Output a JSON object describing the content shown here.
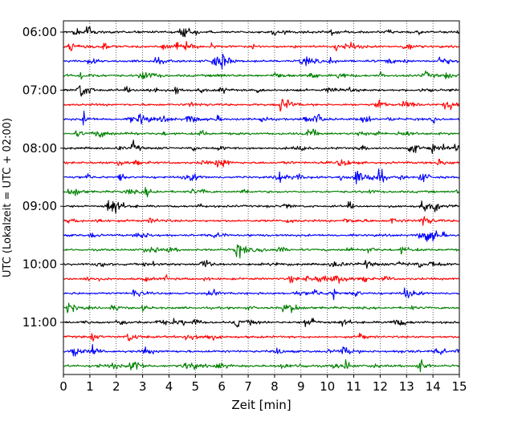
{
  "chart_data": {
    "type": "line",
    "title": "",
    "xlabel": "Zeit  [min]",
    "ylabel": "UTC (Lokalzeit = UTC + 02:00)",
    "xlim": [
      0,
      15
    ],
    "x_ticks": [
      "0",
      "1",
      "2",
      "3",
      "4",
      "5",
      "6",
      "7",
      "8",
      "9",
      "10",
      "11",
      "12",
      "13",
      "14",
      "15"
    ],
    "y_tick_labels": [
      "06:00",
      "07:00",
      "08:00",
      "09:00",
      "10:00",
      "11:00"
    ],
    "grid": "vertical dotted",
    "minutes_per_trace": 15,
    "trace_start": "06:00",
    "trace_count": 24,
    "color_cycle": [
      "#000000",
      "#ff0000",
      "#0000ff",
      "#008000"
    ],
    "series_note": "Helicorder seismogram: one trace per 15 minutes from 06:00 to 11:45 UTC; values are relative ground velocity (unitless)"
  }
}
